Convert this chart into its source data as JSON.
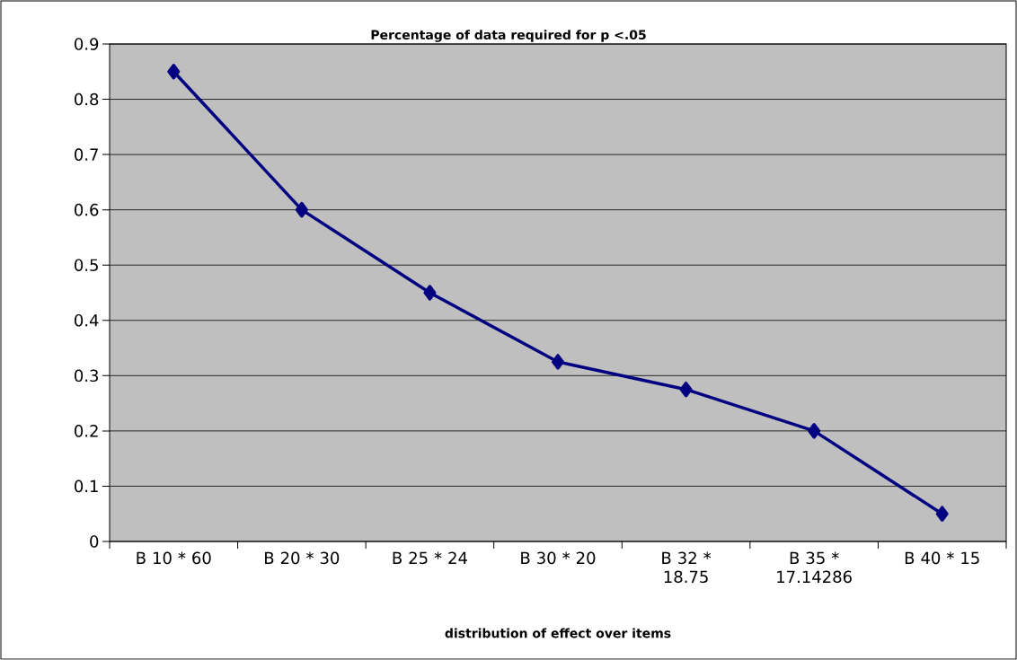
{
  "chart_data": {
    "type": "line",
    "title": "Percentage of data required for p <.05",
    "xlabel": "distribution of effect over items",
    "categories": [
      "B 10 * 60",
      "B 20 * 30",
      "B 25 * 24",
      "B 30 * 20",
      "B 32 * 18.75",
      "B 35 * 17.14286",
      "B 40 * 15"
    ],
    "series": [
      {
        "color": "#000080",
        "values": [
          0.85,
          0.6,
          0.45,
          0.325,
          0.275,
          0.2,
          0.05
        ]
      }
    ],
    "ylim": [
      0,
      0.9
    ],
    "yticks": [
      0,
      0.1,
      0.2,
      0.3,
      0.4,
      0.5,
      0.6,
      0.7,
      0.8,
      0.9
    ],
    "grid": "y",
    "marker": "diamond",
    "line_style": "solid"
  }
}
